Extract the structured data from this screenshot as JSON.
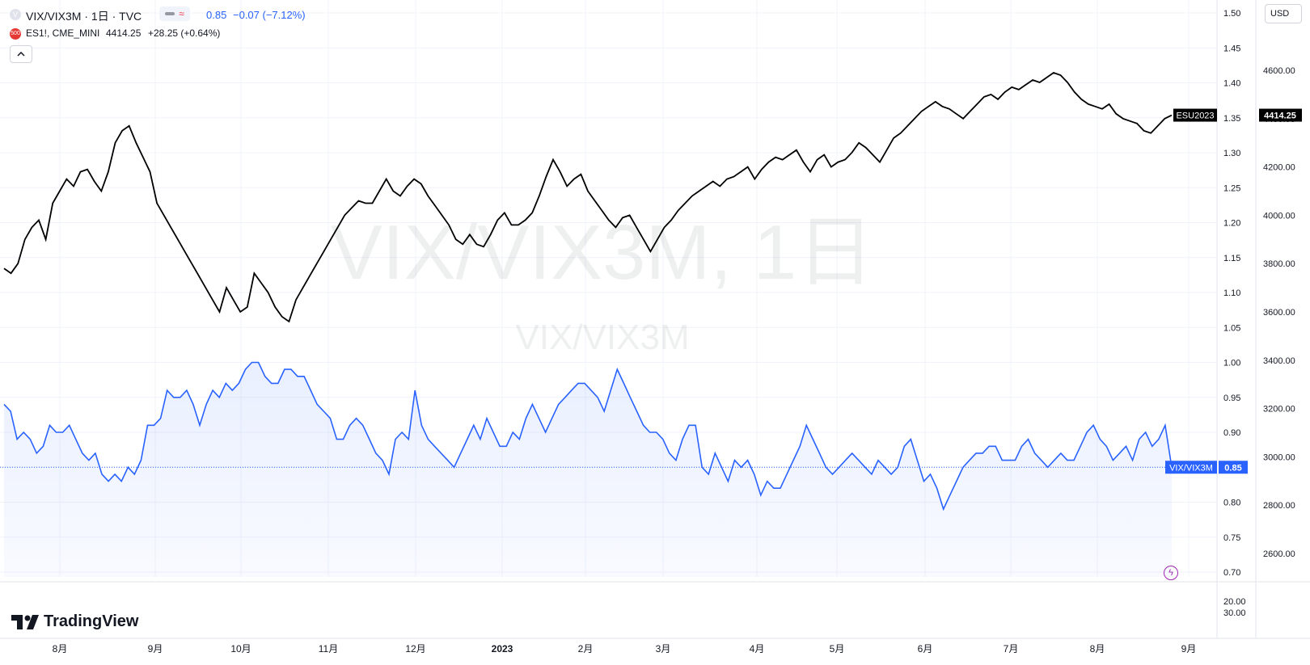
{
  "legend": {
    "main_symbol": "VIX/VIX3M · 1日 · TVC",
    "main_price": "0.85",
    "main_change": "−0.07 (−7.12%)",
    "secondary_symbol": "ES1!, CME_MINI",
    "secondary_price": "4414.25",
    "secondary_change": "+28.25 (+0.64%)",
    "secondary_badge": "500",
    "main_icon": "V",
    "collapse_icon": "chevron-up-icon"
  },
  "currency_button": "USD",
  "watermark": {
    "line1": "VIX/VIX3M, 1日",
    "line2": "VIX/VIX3M"
  },
  "logo_text": "TradingView",
  "colors": {
    "main_series": "#2962ff",
    "secondary_series": "#000000",
    "down": "#2962ff"
  },
  "chart_data": {
    "type": "line",
    "x_labels": [
      "8月",
      "9月",
      "10月",
      "11月",
      "12月",
      "2023",
      "2月",
      "3月",
      "4月",
      "5月",
      "6月",
      "7月",
      "8月",
      "9月"
    ],
    "left_axis": {
      "ticks": [
        "1.50",
        "1.45",
        "1.40",
        "1.35",
        "1.30",
        "1.25",
        "1.20",
        "1.15",
        "1.10",
        "1.05",
        "1.00",
        "0.95",
        "0.90",
        "0.85",
        "0.80",
        "0.75",
        "0.70"
      ],
      "range": [
        0.7,
        1.5
      ]
    },
    "right_axis": {
      "ticks": [
        "4600.00",
        "4400.00",
        "4200.00",
        "4000.00",
        "3800.00",
        "3600.00",
        "3400.00",
        "3200.00",
        "3000.00",
        "2800.00",
        "2600.00"
      ],
      "range": [
        2600,
        4600
      ]
    },
    "lower_pane_ticks": [
      "20.00",
      "30.00"
    ],
    "series": [
      {
        "name": "VIX/VIX3M",
        "axis": "left",
        "last_value": "0.85",
        "values": [
          0.94,
          0.93,
          0.89,
          0.9,
          0.89,
          0.87,
          0.88,
          0.91,
          0.9,
          0.9,
          0.91,
          0.89,
          0.87,
          0.86,
          0.87,
          0.84,
          0.83,
          0.84,
          0.83,
          0.85,
          0.84,
          0.86,
          0.91,
          0.91,
          0.92,
          0.96,
          0.95,
          0.95,
          0.96,
          0.94,
          0.91,
          0.94,
          0.96,
          0.95,
          0.97,
          0.96,
          0.97,
          0.99,
          1.0,
          1.0,
          0.98,
          0.97,
          0.97,
          0.99,
          0.99,
          0.98,
          0.98,
          0.96,
          0.94,
          0.93,
          0.92,
          0.89,
          0.89,
          0.91,
          0.92,
          0.91,
          0.89,
          0.87,
          0.86,
          0.84,
          0.89,
          0.9,
          0.89,
          0.96,
          0.91,
          0.89,
          0.88,
          0.87,
          0.86,
          0.85,
          0.87,
          0.89,
          0.91,
          0.89,
          0.92,
          0.9,
          0.88,
          0.88,
          0.9,
          0.89,
          0.92,
          0.94,
          0.92,
          0.9,
          0.92,
          0.94,
          0.95,
          0.96,
          0.97,
          0.97,
          0.96,
          0.95,
          0.93,
          0.96,
          0.99,
          0.97,
          0.95,
          0.93,
          0.91,
          0.9,
          0.9,
          0.89,
          0.87,
          0.86,
          0.89,
          0.91,
          0.91,
          0.85,
          0.84,
          0.87,
          0.85,
          0.83,
          0.86,
          0.85,
          0.86,
          0.84,
          0.81,
          0.83,
          0.82,
          0.82,
          0.84,
          0.86,
          0.88,
          0.91,
          0.89,
          0.87,
          0.85,
          0.84,
          0.85,
          0.86,
          0.87,
          0.86,
          0.85,
          0.84,
          0.86,
          0.85,
          0.84,
          0.85,
          0.88,
          0.89,
          0.86,
          0.83,
          0.84,
          0.82,
          0.79,
          0.81,
          0.83,
          0.85,
          0.86,
          0.87,
          0.87,
          0.88,
          0.88,
          0.86,
          0.86,
          0.86,
          0.88,
          0.89,
          0.87,
          0.86,
          0.85,
          0.86,
          0.87,
          0.86,
          0.86,
          0.88,
          0.9,
          0.91,
          0.89,
          0.88,
          0.86,
          0.87,
          0.88,
          0.86,
          0.89,
          0.9,
          0.88,
          0.89,
          0.91,
          0.85
        ]
      },
      {
        "name": "ESU2023",
        "axis": "right",
        "last_value": "4414.25",
        "values": [
          3780,
          3760,
          3800,
          3900,
          3950,
          3980,
          3900,
          4050,
          4100,
          4150,
          4120,
          4180,
          4190,
          4140,
          4100,
          4180,
          4300,
          4350,
          4370,
          4300,
          4240,
          4180,
          4050,
          4000,
          3950,
          3900,
          3850,
          3800,
          3750,
          3700,
          3650,
          3600,
          3700,
          3650,
          3600,
          3620,
          3760,
          3720,
          3680,
          3620,
          3580,
          3560,
          3650,
          3700,
          3750,
          3800,
          3850,
          3900,
          3950,
          4000,
          4030,
          4060,
          4050,
          4050,
          4100,
          4150,
          4100,
          4080,
          4120,
          4150,
          4130,
          4080,
          4040,
          4000,
          3960,
          3900,
          3880,
          3920,
          3880,
          3870,
          3920,
          3980,
          4010,
          3960,
          3960,
          3980,
          4010,
          4080,
          4160,
          4230,
          4180,
          4120,
          4150,
          4170,
          4100,
          4060,
          4020,
          3980,
          3950,
          3990,
          4000,
          3950,
          3900,
          3850,
          3900,
          3950,
          3980,
          4020,
          4050,
          4080,
          4100,
          4120,
          4140,
          4120,
          4150,
          4160,
          4180,
          4200,
          4150,
          4190,
          4220,
          4240,
          4230,
          4250,
          4270,
          4220,
          4180,
          4230,
          4250,
          4200,
          4220,
          4230,
          4260,
          4300,
          4280,
          4250,
          4220,
          4270,
          4320,
          4340,
          4370,
          4400,
          4430,
          4450,
          4470,
          4450,
          4440,
          4420,
          4400,
          4430,
          4460,
          4490,
          4500,
          4480,
          4510,
          4530,
          4520,
          4540,
          4560,
          4550,
          4570,
          4590,
          4580,
          4550,
          4510,
          4480,
          4460,
          4450,
          4440,
          4460,
          4420,
          4400,
          4390,
          4380,
          4350,
          4340,
          4370,
          4400,
          4414
        ]
      }
    ]
  }
}
